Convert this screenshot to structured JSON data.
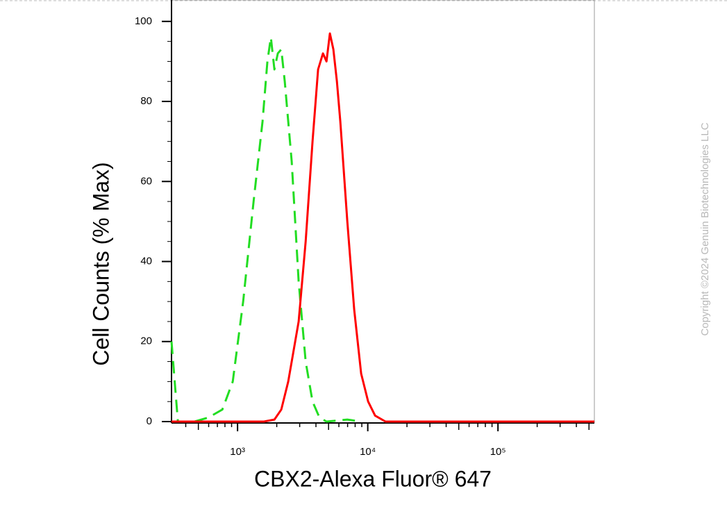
{
  "chart_data": {
    "type": "line",
    "y_label": "Cell Counts (% Max)",
    "x_label": "CBX2-Alexa Fluor® 647",
    "watermark": "Copyright ©2024 Genuin Biotechnologies LLC",
    "x_scale": "log",
    "xlim": [
      311,
      550000
    ],
    "xticks": [
      {
        "value": 1000,
        "label": "10³"
      },
      {
        "value": 10000,
        "label": "10⁴"
      },
      {
        "value": 100000,
        "label": "10⁵"
      }
    ],
    "ylim": [
      0,
      105
    ],
    "yticks": [
      0,
      20,
      40,
      60,
      80,
      100
    ],
    "series": [
      {
        "color": "#22dd22",
        "dash": true,
        "x": [
          311,
          348,
          467,
          597,
          764,
          918,
          1104,
          1327,
          1556,
          1695,
          1803,
          1918,
          2039,
          2168,
          2305,
          2606,
          2946,
          3333,
          3767,
          4259,
          4819,
          6966,
          8892
        ],
        "values": [
          20,
          0,
          0,
          1,
          3,
          10,
          30,
          55,
          75,
          90,
          96,
          88,
          92,
          93,
          85,
          65,
          35,
          15,
          5,
          1,
          0,
          0.5,
          0
        ]
      },
      {
        "color": "#ff0000",
        "dash": false,
        "x": [
          311,
          1595,
          1918,
          2168,
          2449,
          2946,
          3333,
          3767,
          4155,
          4529,
          4819,
          5117,
          5445,
          5794,
          6152,
          6966,
          7870,
          8892,
          10070,
          11380,
          13680,
          550000
        ],
        "values": [
          0,
          0,
          0.5,
          3,
          10,
          25,
          45,
          70,
          88,
          92,
          90,
          97,
          93,
          85,
          75,
          50,
          28,
          12,
          5,
          1.5,
          0,
          0
        ]
      }
    ]
  }
}
